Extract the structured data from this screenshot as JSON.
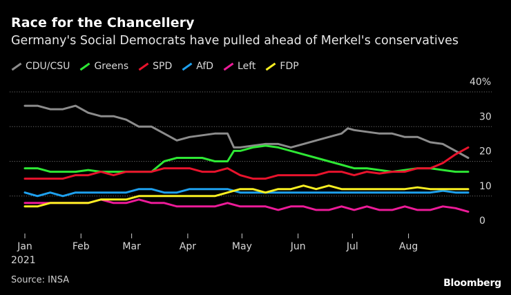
{
  "chart_data": {
    "type": "line",
    "title": "Race for the Chancellery",
    "subtitle": "Germany's Social Democrats have pulled ahead of Merkel's conservatives",
    "source": "Source: INSA",
    "brand": "Bloomberg",
    "ylim": [
      0,
      40
    ],
    "yticks": [
      0,
      10,
      20,
      30,
      40
    ],
    "ytick_labels": [
      "0",
      "10",
      "20",
      "30",
      "40%"
    ],
    "xlim": [
      0,
      35
    ],
    "xticks": [
      {
        "pos": 0.0,
        "label": "Jan"
      },
      {
        "pos": 4.43,
        "label": "Feb"
      },
      {
        "pos": 8.43,
        "label": "Mar"
      },
      {
        "pos": 12.86,
        "label": "Apr"
      },
      {
        "pos": 17.14,
        "label": "May"
      },
      {
        "pos": 21.57,
        "label": "Jun"
      },
      {
        "pos": 25.86,
        "label": "Jul"
      },
      {
        "pos": 30.29,
        "label": "Aug"
      }
    ],
    "year_label": "2021",
    "x_unit": "weeks since start of January 2021",
    "series": [
      {
        "name": "CDU/CSU",
        "color": "#8c8c8c",
        "values": [
          [
            0,
            36
          ],
          [
            1,
            36
          ],
          [
            2,
            35
          ],
          [
            3,
            35
          ],
          [
            4,
            36
          ],
          [
            5,
            34
          ],
          [
            6,
            33
          ],
          [
            7,
            33
          ],
          [
            8,
            32
          ],
          [
            9,
            30
          ],
          [
            10,
            30
          ],
          [
            11,
            28
          ],
          [
            12,
            26
          ],
          [
            13,
            27
          ],
          [
            14,
            27.5
          ],
          [
            15,
            28
          ],
          [
            16,
            28
          ],
          [
            16.5,
            24
          ],
          [
            17,
            24
          ],
          [
            18,
            24.5
          ],
          [
            19,
            25
          ],
          [
            20,
            25
          ],
          [
            21,
            24
          ],
          [
            22,
            25
          ],
          [
            23,
            26
          ],
          [
            24,
            27
          ],
          [
            25,
            28
          ],
          [
            25.5,
            29.5
          ],
          [
            26,
            29
          ],
          [
            27,
            28.5
          ],
          [
            28,
            28
          ],
          [
            29,
            28
          ],
          [
            30,
            27
          ],
          [
            31,
            27
          ],
          [
            32,
            25.5
          ],
          [
            33,
            25
          ],
          [
            34,
            23
          ],
          [
            35,
            21
          ]
        ]
      },
      {
        "name": "Greens",
        "color": "#2ee835",
        "values": [
          [
            0,
            18
          ],
          [
            1,
            18
          ],
          [
            2,
            17
          ],
          [
            3,
            17
          ],
          [
            4,
            17
          ],
          [
            5,
            17.5
          ],
          [
            6,
            17
          ],
          [
            7,
            17
          ],
          [
            8,
            17
          ],
          [
            9,
            17
          ],
          [
            10,
            17
          ],
          [
            11,
            20
          ],
          [
            12,
            21
          ],
          [
            13,
            21
          ],
          [
            14,
            21
          ],
          [
            15,
            20
          ],
          [
            16,
            20
          ],
          [
            16.5,
            23
          ],
          [
            17,
            23
          ],
          [
            18,
            24
          ],
          [
            19,
            24.5
          ],
          [
            20,
            24
          ],
          [
            21,
            23
          ],
          [
            22,
            22
          ],
          [
            23,
            21
          ],
          [
            24,
            20
          ],
          [
            25,
            19
          ],
          [
            26,
            18
          ],
          [
            27,
            18
          ],
          [
            28,
            17.5
          ],
          [
            29,
            17
          ],
          [
            30,
            17.5
          ],
          [
            31,
            18
          ],
          [
            32,
            18
          ],
          [
            33,
            17.5
          ],
          [
            34,
            17
          ],
          [
            35,
            17
          ]
        ]
      },
      {
        "name": "SPD",
        "color": "#e8132c",
        "values": [
          [
            0,
            15
          ],
          [
            1,
            15
          ],
          [
            2,
            15
          ],
          [
            3,
            15
          ],
          [
            4,
            16
          ],
          [
            5,
            16
          ],
          [
            6,
            17
          ],
          [
            7,
            16
          ],
          [
            8,
            17
          ],
          [
            9,
            17
          ],
          [
            10,
            17
          ],
          [
            11,
            18
          ],
          [
            12,
            18
          ],
          [
            13,
            18
          ],
          [
            14,
            17
          ],
          [
            15,
            17
          ],
          [
            16,
            18
          ],
          [
            17,
            16
          ],
          [
            18,
            15
          ],
          [
            19,
            15
          ],
          [
            20,
            16
          ],
          [
            21,
            16
          ],
          [
            22,
            16
          ],
          [
            23,
            16
          ],
          [
            24,
            17
          ],
          [
            25,
            17
          ],
          [
            26,
            16
          ],
          [
            27,
            17
          ],
          [
            28,
            16.5
          ],
          [
            29,
            17
          ],
          [
            30,
            17
          ],
          [
            31,
            18
          ],
          [
            32,
            18
          ],
          [
            33,
            19.5
          ],
          [
            34,
            22
          ],
          [
            35,
            24
          ]
        ]
      },
      {
        "name": "AfD",
        "color": "#1ea0ee",
        "values": [
          [
            0,
            11
          ],
          [
            1,
            10
          ],
          [
            2,
            11
          ],
          [
            3,
            10
          ],
          [
            4,
            11
          ],
          [
            5,
            11
          ],
          [
            6,
            11
          ],
          [
            7,
            11
          ],
          [
            8,
            11
          ],
          [
            9,
            12
          ],
          [
            10,
            12
          ],
          [
            11,
            11
          ],
          [
            12,
            11
          ],
          [
            13,
            12
          ],
          [
            14,
            12
          ],
          [
            15,
            12
          ],
          [
            16,
            12
          ],
          [
            17,
            11
          ],
          [
            18,
            11
          ],
          [
            19,
            11
          ],
          [
            20,
            11
          ],
          [
            21,
            11
          ],
          [
            22,
            11
          ],
          [
            23,
            11
          ],
          [
            24,
            11
          ],
          [
            25,
            11
          ],
          [
            26,
            11
          ],
          [
            27,
            11
          ],
          [
            28,
            11
          ],
          [
            29,
            11
          ],
          [
            30,
            11
          ],
          [
            31,
            11
          ],
          [
            32,
            11
          ],
          [
            33,
            11.5
          ],
          [
            34,
            11
          ],
          [
            35,
            11
          ]
        ]
      },
      {
        "name": "Left",
        "color": "#ec1b98",
        "values": [
          [
            0,
            8
          ],
          [
            1,
            8
          ],
          [
            2,
            8
          ],
          [
            3,
            8
          ],
          [
            4,
            8
          ],
          [
            5,
            8
          ],
          [
            6,
            9
          ],
          [
            7,
            8
          ],
          [
            8,
            8
          ],
          [
            9,
            9
          ],
          [
            10,
            8
          ],
          [
            11,
            8
          ],
          [
            12,
            7
          ],
          [
            13,
            7
          ],
          [
            14,
            7
          ],
          [
            15,
            7
          ],
          [
            16,
            8
          ],
          [
            17,
            7
          ],
          [
            18,
            7
          ],
          [
            19,
            7
          ],
          [
            20,
            6
          ],
          [
            21,
            7
          ],
          [
            22,
            7
          ],
          [
            23,
            6
          ],
          [
            24,
            6
          ],
          [
            25,
            7
          ],
          [
            26,
            6
          ],
          [
            27,
            7
          ],
          [
            28,
            6
          ],
          [
            29,
            6
          ],
          [
            30,
            7
          ],
          [
            31,
            6
          ],
          [
            32,
            6
          ],
          [
            33,
            7
          ],
          [
            34,
            6.5
          ],
          [
            35,
            5.5
          ]
        ]
      },
      {
        "name": "FDP",
        "color": "#f8ef21",
        "values": [
          [
            0,
            7
          ],
          [
            1,
            7
          ],
          [
            2,
            8
          ],
          [
            3,
            8
          ],
          [
            4,
            8
          ],
          [
            5,
            8
          ],
          [
            6,
            9
          ],
          [
            7,
            9
          ],
          [
            8,
            9
          ],
          [
            9,
            10
          ],
          [
            10,
            10
          ],
          [
            11,
            10
          ],
          [
            12,
            10
          ],
          [
            13,
            10
          ],
          [
            14,
            10
          ],
          [
            15,
            10
          ],
          [
            16,
            11
          ],
          [
            17,
            12
          ],
          [
            18,
            12
          ],
          [
            19,
            11
          ],
          [
            20,
            12
          ],
          [
            21,
            12
          ],
          [
            22,
            13
          ],
          [
            23,
            12
          ],
          [
            24,
            13
          ],
          [
            25,
            12
          ],
          [
            26,
            12
          ],
          [
            27,
            12
          ],
          [
            28,
            12
          ],
          [
            29,
            12
          ],
          [
            30,
            12
          ],
          [
            31,
            12.5
          ],
          [
            32,
            12
          ],
          [
            33,
            12
          ],
          [
            34,
            12
          ],
          [
            35,
            12
          ]
        ]
      }
    ]
  }
}
